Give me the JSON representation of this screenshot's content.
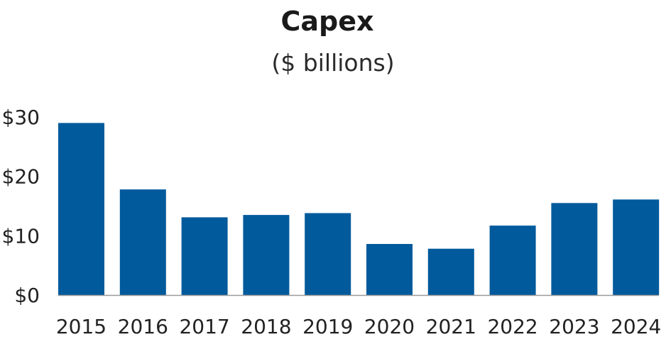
{
  "chart_data": {
    "type": "bar",
    "title": "Capex",
    "subtitle": "($ billions)",
    "xlabel": "",
    "ylabel": "",
    "categories": [
      "2015",
      "2016",
      "2017",
      "2018",
      "2019",
      "2020",
      "2021",
      "2022",
      "2023",
      "2024"
    ],
    "values": [
      29.0,
      17.8,
      13.1,
      13.5,
      13.8,
      8.6,
      7.8,
      11.7,
      15.5,
      16.1
    ],
    "ylim": [
      0,
      30
    ],
    "yticks": [
      0,
      10,
      20,
      30
    ],
    "ytick_labels": [
      "$0",
      "$10",
      "$20",
      "$30"
    ],
    "grid": false,
    "legend": "none",
    "bar_color": "#005a9c",
    "axis_color": "#999999"
  }
}
